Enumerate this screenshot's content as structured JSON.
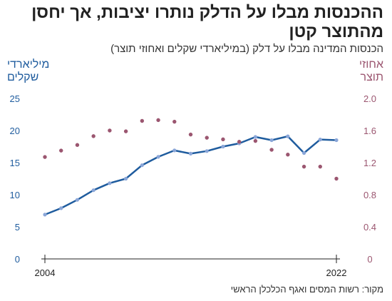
{
  "title": "ההכנסות מבלו על הדלק נותרו יציבות, אך יחסן מהתוצר קטן",
  "subtitle": "הכנסות המדינה מבלו על דלק (במיליארדי שקלים ואחוזי תוצר)",
  "source": "מקור: רשות המסים ואגף הכלכלן הראשי",
  "chart_data": {
    "type": "line",
    "x": [
      2004,
      2005,
      2006,
      2007,
      2008,
      2009,
      2010,
      2011,
      2012,
      2013,
      2014,
      2015,
      2016,
      2017,
      2018,
      2019,
      2020,
      2021,
      2022
    ],
    "x_tick_labels": [
      "2004",
      "2022"
    ],
    "left_axis": {
      "label": "מיליארדי שקלים",
      "ylim": [
        0,
        25
      ],
      "ticks": [
        "0",
        "5",
        "10",
        "15",
        "20",
        "25"
      ]
    },
    "right_axis": {
      "label": "אחוזי תוצר",
      "ylim": [
        0,
        2.0
      ],
      "ticks": [
        "0",
        "0.4",
        "0.8",
        "1.2",
        "1.6",
        "2.0"
      ]
    },
    "series": [
      {
        "axis": "left",
        "style": "line-with-markers",
        "color": "#1f5c9e",
        "marker_color": "#8aa6d8",
        "values": [
          6.9,
          7.9,
          9.2,
          10.7,
          11.8,
          12.5,
          14.6,
          15.9,
          16.9,
          16.4,
          16.8,
          17.5,
          18.0,
          19.0,
          18.5,
          19.1,
          16.5,
          18.6,
          18.5
        ]
      },
      {
        "axis": "right",
        "style": "dots",
        "color": "#9b5670",
        "values": [
          1.27,
          1.35,
          1.42,
          1.53,
          1.6,
          1.59,
          1.72,
          1.73,
          1.71,
          1.55,
          1.51,
          1.49,
          1.46,
          1.47,
          1.36,
          1.3,
          1.15,
          1.15,
          1.0
        ]
      }
    ]
  }
}
